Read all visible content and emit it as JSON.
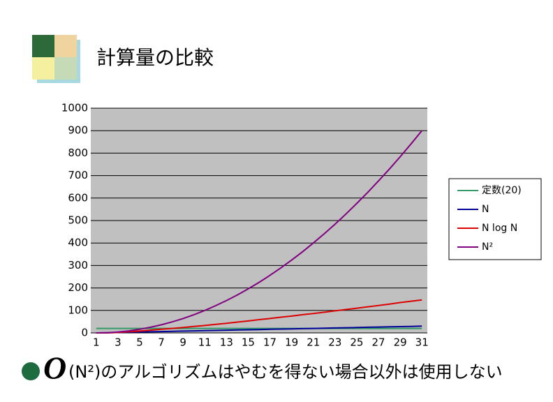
{
  "slide": {
    "title": "計算量の比較",
    "footnote": {
      "symbol": "O",
      "text": "(N²)のアルゴリズムはやむを得ない場合以外は使用しない"
    }
  },
  "chart_data": {
    "type": "line",
    "categories": [
      1,
      null,
      3,
      null,
      5,
      null,
      7,
      null,
      9,
      null,
      11,
      null,
      13,
      null,
      15,
      null,
      17,
      null,
      19,
      null,
      21,
      null,
      23,
      null,
      25,
      null,
      27,
      null,
      29,
      null,
      31
    ],
    "series": [
      {
        "name": "定数(20)",
        "color": "#339966",
        "values": [
          20,
          20,
          20,
          20,
          20,
          20,
          20,
          20,
          20,
          20,
          20,
          20,
          20,
          20,
          20,
          20,
          20,
          20,
          20,
          20,
          20,
          20,
          20,
          20,
          20,
          20,
          20,
          20,
          20,
          20,
          20
        ]
      },
      {
        "name": "N",
        "color": "#000099",
        "values": [
          0,
          1,
          2,
          3,
          4,
          5,
          6,
          7,
          8,
          9,
          10,
          11,
          12,
          13,
          14,
          15,
          16,
          17,
          18,
          19,
          20,
          21,
          22,
          23,
          24,
          25,
          26,
          27,
          28,
          29,
          30
        ]
      },
      {
        "name": "N log N",
        "color": "#dd0000",
        "values": [
          0,
          0,
          2,
          5,
          8,
          12,
          16,
          20,
          24,
          29,
          33,
          38,
          43,
          48,
          53,
          59,
          64,
          70,
          75,
          81,
          86,
          92,
          98,
          104,
          110,
          116,
          122,
          128,
          135,
          141,
          147
        ]
      },
      {
        "name": "N²",
        "color": "#800080",
        "values": [
          0,
          1,
          4,
          9,
          16,
          25,
          36,
          49,
          64,
          81,
          100,
          121,
          144,
          169,
          196,
          225,
          256,
          289,
          324,
          361,
          400,
          441,
          484,
          529,
          576,
          625,
          676,
          729,
          784,
          841,
          900
        ]
      }
    ],
    "ylim": [
      0,
      1000
    ],
    "yticks": [
      0,
      100,
      200,
      300,
      400,
      500,
      600,
      700,
      800,
      900,
      1000
    ],
    "grid": true,
    "legend": "right"
  }
}
